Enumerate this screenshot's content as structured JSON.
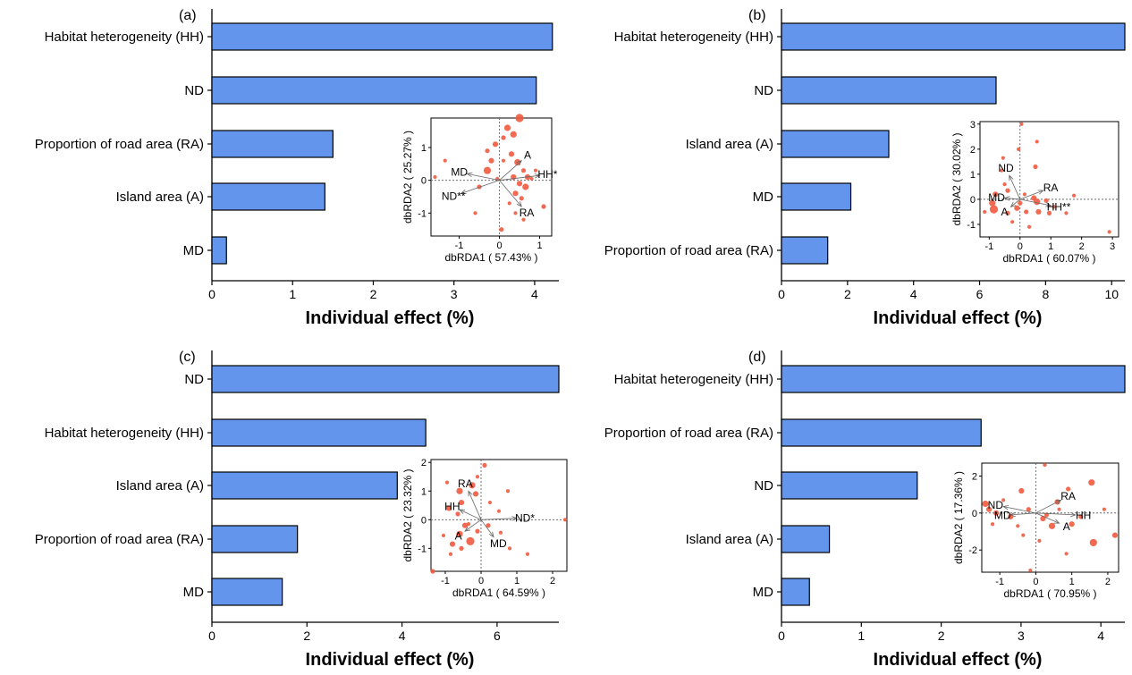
{
  "colors": {
    "bar": "#6495ED",
    "point": "#F15A3F",
    "text": "#000000"
  },
  "chart_data": [
    {
      "panel": "(a)",
      "type": "bar",
      "orientation": "horizontal",
      "categories": [
        "Habitat heterogeneity (HH)",
        "ND",
        "Proportion of road area (RA)",
        "Island area (A)",
        "MD"
      ],
      "values": [
        4.22,
        4.02,
        1.5,
        1.4,
        0.18
      ],
      "xlabel": "Individual effect (%)",
      "xlim": [
        0,
        4.3
      ],
      "xticks": [
        0,
        1,
        2,
        3,
        4
      ],
      "inset": {
        "type": "scatter",
        "xlabel": "dbRDA1 ( 57.43% )",
        "ylabel": "dbRDA2 ( 25.27% )",
        "xlim": [
          -1.7,
          1.3
        ],
        "ylim": [
          -1.7,
          1.9
        ],
        "xticks": [
          -1,
          0,
          1
        ],
        "yticks": [
          -1,
          0,
          1
        ],
        "vectors": [
          {
            "label": "A",
            "x": 0.55,
            "y": 0.6
          },
          {
            "label": "HH*",
            "x": 1.0,
            "y": 0.15
          },
          {
            "label": "MD",
            "x": -0.8,
            "y": 0.2
          },
          {
            "label": "ND**",
            "x": -0.95,
            "y": -0.4
          },
          {
            "label": "RA",
            "x": 0.55,
            "y": -0.8
          }
        ],
        "points": [
          [
            0.5,
            1.9,
            8
          ],
          [
            0.2,
            1.6,
            6
          ],
          [
            0.35,
            1.4,
            6
          ],
          [
            0.1,
            1.3,
            4
          ],
          [
            -0.1,
            1.1,
            5
          ],
          [
            -0.3,
            0.9,
            4
          ],
          [
            0.3,
            0.8,
            5
          ],
          [
            0.45,
            0.55,
            6
          ],
          [
            -0.2,
            0.6,
            5
          ],
          [
            0.6,
            0.3,
            4
          ],
          [
            0.7,
            0.1,
            5
          ],
          [
            0.8,
            0.05,
            3
          ],
          [
            -0.3,
            0.3,
            7
          ],
          [
            0.5,
            -0.1,
            5
          ],
          [
            0.65,
            -0.2,
            6
          ],
          [
            0.4,
            -0.4,
            5
          ],
          [
            0.55,
            -0.55,
            4
          ],
          [
            1.1,
            -0.8,
            4
          ],
          [
            0.9,
            0.3,
            3
          ],
          [
            -0.5,
            -0.2,
            4
          ],
          [
            -1.35,
            0.6,
            3
          ],
          [
            -1.6,
            0.1,
            3
          ],
          [
            0.25,
            -0.7,
            3
          ],
          [
            -0.6,
            -1.0,
            3
          ],
          [
            0.05,
            -1.5,
            4
          ],
          [
            0.6,
            -1.2,
            3
          ],
          [
            0.4,
            -1.0,
            3
          ],
          [
            0.35,
            0.1,
            5
          ],
          [
            0.1,
            0.6,
            3
          ],
          [
            -0.05,
            0.05,
            3
          ]
        ]
      }
    },
    {
      "panel": "(b)",
      "type": "bar",
      "orientation": "horizontal",
      "categories": [
        "Habitat heterogeneity (HH)",
        "ND",
        "Island area (A)",
        "MD",
        "Proportion of road area (RA)"
      ],
      "values": [
        10.4,
        6.5,
        3.25,
        2.1,
        1.4
      ],
      "xlabel": "Individual effect (%)",
      "xlim": [
        0,
        10.4
      ],
      "xticks": [
        0,
        2,
        4,
        6,
        8,
        10
      ],
      "inset": {
        "type": "scatter",
        "xlabel": "dbRDA1 ( 60.07% )",
        "ylabel": "dbRDA2 ( 30.02% )",
        "xlim": [
          -1.3,
          3.2
        ],
        "ylim": [
          -1.5,
          3.1
        ],
        "xticks": [
          -1,
          0,
          1,
          2,
          3
        ],
        "yticks": [
          -1,
          0,
          1,
          2,
          3
        ],
        "vectors": [
          {
            "label": "ND",
            "x": -0.35,
            "y": 0.95
          },
          {
            "label": "MD",
            "x": -0.5,
            "y": 0.05
          },
          {
            "label": "RA",
            "x": 0.75,
            "y": 0.35
          },
          {
            "label": "A",
            "x": -0.3,
            "y": -0.3
          },
          {
            "label": "HH**",
            "x": 1.0,
            "y": -0.25
          }
        ],
        "points": [
          [
            -0.85,
            -0.4,
            8
          ],
          [
            -0.9,
            -0.15,
            6
          ],
          [
            -0.8,
            0.2,
            5
          ],
          [
            -0.4,
            -0.55,
            4
          ],
          [
            -0.1,
            -0.35,
            5
          ],
          [
            0.0,
            -0.15,
            4
          ],
          [
            0.2,
            -0.5,
            4
          ],
          [
            0.45,
            0.05,
            5
          ],
          [
            0.55,
            -0.1,
            6
          ],
          [
            0.6,
            -0.5,
            5
          ],
          [
            0.85,
            -0.05,
            4
          ],
          [
            0.95,
            -0.55,
            4
          ],
          [
            1.1,
            -0.3,
            3
          ],
          [
            1.75,
            0.15,
            3
          ],
          [
            2.9,
            -1.3,
            3
          ],
          [
            0.05,
            3.0,
            3
          ],
          [
            -0.05,
            2.0,
            3
          ],
          [
            0.5,
            1.3,
            4
          ],
          [
            0.55,
            2.3,
            3
          ],
          [
            -0.55,
            1.65,
            3
          ],
          [
            -0.5,
            0.6,
            3
          ],
          [
            -0.4,
            0.35,
            4
          ],
          [
            0.15,
            0.2,
            3
          ],
          [
            1.5,
            -0.55,
            3
          ],
          [
            0.3,
            -1.1,
            3
          ],
          [
            -1.15,
            -0.5,
            3
          ],
          [
            -0.25,
            -0.9,
            3
          ],
          [
            -0.6,
            1.15,
            3
          ]
        ]
      }
    },
    {
      "panel": "(c)",
      "type": "bar",
      "orientation": "horizontal",
      "categories": [
        "ND",
        "Habitat heterogeneity (HH)",
        "Island area (A)",
        "Proportion of road area (RA)",
        "MD"
      ],
      "values": [
        7.3,
        4.5,
        3.9,
        1.8,
        1.48
      ],
      "xlabel": "Individual effect (%)",
      "xlim": [
        0,
        7.3
      ],
      "xticks": [
        0,
        2,
        4,
        6
      ],
      "inset": {
        "type": "scatter",
        "xlabel": "dbRDA1 ( 64.59% )",
        "ylabel": "dbRDA2 ( 23.32% )",
        "xlim": [
          -1.4,
          2.4
        ],
        "ylim": [
          -1.8,
          2.1
        ],
        "xticks": [
          -1,
          0,
          1,
          2
        ],
        "yticks": [
          -1,
          0,
          1,
          2
        ],
        "vectors": [
          {
            "label": "RA",
            "x": -0.35,
            "y": 1.0
          },
          {
            "label": "HH",
            "x": -0.6,
            "y": 0.35
          },
          {
            "label": "ND*",
            "x": 1.0,
            "y": 0.05
          },
          {
            "label": "A",
            "x": -0.45,
            "y": -0.4
          },
          {
            "label": "MD",
            "x": 0.35,
            "y": -0.6
          }
        ],
        "points": [
          [
            -0.6,
            1.0,
            6
          ],
          [
            -0.25,
            1.2,
            6
          ],
          [
            -0.15,
            0.9,
            5
          ],
          [
            -0.55,
            0.6,
            5
          ],
          [
            -0.9,
            0.4,
            5
          ],
          [
            -0.65,
            0.2,
            4
          ],
          [
            -0.45,
            -0.2,
            5
          ],
          [
            -0.6,
            -0.5,
            6
          ],
          [
            -0.3,
            -0.75,
            8
          ],
          [
            -0.8,
            -0.85,
            5
          ],
          [
            -0.55,
            -1.0,
            4
          ],
          [
            -0.1,
            -0.4,
            4
          ],
          [
            0.1,
            1.9,
            4
          ],
          [
            0.75,
            1.0,
            3
          ],
          [
            0.2,
            -0.2,
            4
          ],
          [
            0.5,
            0.3,
            3
          ],
          [
            -1.05,
            -0.55,
            3
          ],
          [
            -1.35,
            -1.8,
            4
          ],
          [
            0.8,
            -1.0,
            3
          ],
          [
            2.35,
            0.0,
            3
          ],
          [
            1.3,
            -1.2,
            3
          ],
          [
            0.55,
            -0.45,
            3
          ],
          [
            -0.85,
            -1.2,
            3
          ],
          [
            -0.1,
            1.5,
            3
          ],
          [
            -0.95,
            1.3,
            3
          ],
          [
            0.25,
            0.6,
            3
          ],
          [
            -0.35,
            -0.15,
            3
          ]
        ]
      }
    },
    {
      "panel": "(d)",
      "type": "bar",
      "orientation": "horizontal",
      "categories": [
        "Habitat heterogeneity (HH)",
        "Proportion of road area (RA)",
        "ND",
        "Island area (A)",
        "MD"
      ],
      "values": [
        4.3,
        2.5,
        1.7,
        0.6,
        0.35
      ],
      "xlabel": "Individual effect (%)",
      "xlim": [
        0,
        4.3
      ],
      "xticks": [
        0,
        1,
        2,
        3,
        4
      ],
      "inset": {
        "type": "scatter",
        "xlabel": "dbRDA1 ( 70.95% )",
        "ylabel": "dbRDA2 ( 17.36% )",
        "xlim": [
          -1.5,
          2.3
        ],
        "ylim": [
          -3.2,
          2.7
        ],
        "xticks": [
          -1,
          0,
          1,
          2
        ],
        "yticks": [
          -2,
          0,
          2
        ],
        "vectors": [
          {
            "label": "ND",
            "x": -0.9,
            "y": 0.35
          },
          {
            "label": "RA",
            "x": 0.7,
            "y": 0.7
          },
          {
            "label": "MD",
            "x": -0.7,
            "y": -0.1
          },
          {
            "label": "HH",
            "x": 1.1,
            "y": -0.1
          },
          {
            "label": "A",
            "x": 0.65,
            "y": -0.55
          }
        ],
        "points": [
          [
            -1.4,
            0.5,
            6
          ],
          [
            -1.3,
            0.2,
            5
          ],
          [
            -1.1,
            0.0,
            5
          ],
          [
            -0.7,
            -0.2,
            5
          ],
          [
            -0.4,
            1.2,
            5
          ],
          [
            -0.2,
            0.2,
            4
          ],
          [
            0.2,
            -0.3,
            5
          ],
          [
            0.45,
            -0.7,
            6
          ],
          [
            0.6,
            0.6,
            5
          ],
          [
            0.9,
            1.3,
            4
          ],
          [
            1.0,
            -0.6,
            5
          ],
          [
            1.25,
            -0.2,
            4
          ],
          [
            1.55,
            1.65,
            6
          ],
          [
            1.6,
            -1.6,
            7
          ],
          [
            2.2,
            -1.2,
            5
          ],
          [
            0.25,
            2.6,
            3
          ],
          [
            -0.35,
            -1.2,
            3
          ],
          [
            -0.15,
            -3.1,
            3
          ],
          [
            0.85,
            -2.2,
            3
          ],
          [
            1.9,
            0.2,
            3
          ],
          [
            0.3,
            -0.1,
            4
          ],
          [
            -0.9,
            0.7,
            3
          ],
          [
            0.65,
            0.2,
            3
          ],
          [
            -0.5,
            -0.7,
            3
          ],
          [
            0.1,
            -1.5,
            3
          ],
          [
            -1.2,
            -0.6,
            3
          ]
        ]
      }
    }
  ]
}
